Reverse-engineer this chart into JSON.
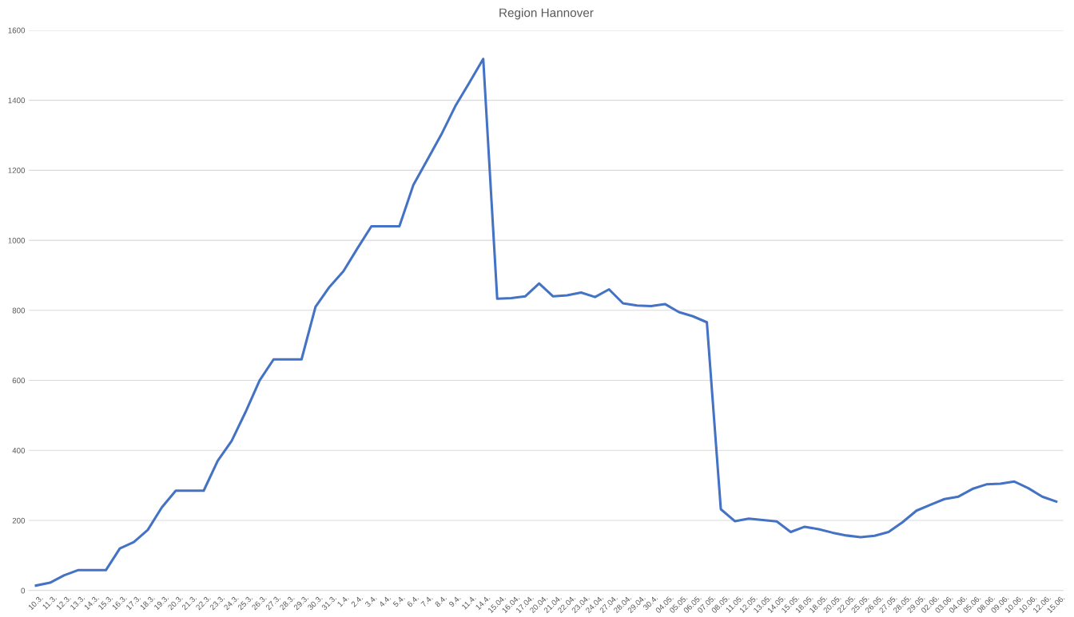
{
  "chart_data": {
    "type": "line",
    "title": "Region Hannover",
    "categories": [
      "10.3.",
      "11.3.",
      "12.3.",
      "13.3.",
      "14.3.",
      "15.3.",
      "16.3.",
      "17.3.",
      "18.3.",
      "19.3.",
      "20.3.",
      "21.3.",
      "22.3.",
      "23.3.",
      "24.3.",
      "25.3.",
      "26.3.",
      "27.3.",
      "28.3.",
      "29.3.",
      "30.3.",
      "31.3.",
      "1.4.",
      "2.4.",
      "3.4.",
      "4.4.",
      "5.4.",
      "6.4.",
      "7.4.",
      "8.4.",
      "9.4.",
      "11.4.",
      "14.4.",
      "15.04.",
      "16.04.",
      "17.04.",
      "20.04.",
      "21.04.",
      "22.04.",
      "23.04.",
      "24.04.",
      "27.04.",
      "28.04.",
      "29.04.",
      "30.4.",
      "04.05.",
      "05.05.",
      "06.05.",
      "07.05.",
      "08.05.",
      "11.05.",
      "12.05.",
      "13.05.",
      "14.05.",
      "15.05.",
      "18.05.",
      "18.05.",
      "20.05.",
      "22.05.",
      "25.05.",
      "26.05.",
      "27.05.",
      "28.05.",
      "29.05.",
      "02.06.",
      "03.06.",
      "04.06.",
      "05.06.",
      "08.06.",
      "09.06.",
      "10.06.",
      "10.06.",
      "12.06.",
      "15.06."
    ],
    "series": [
      {
        "color": "#4472c4",
        "values": [
          14,
          22,
          43,
          58,
          58,
          58,
          120,
          138,
          173,
          237,
          285,
          285,
          285,
          370,
          427,
          510,
          600,
          660,
          660,
          660,
          810,
          867,
          912,
          977,
          1040,
          1040,
          1040,
          1158,
          1230,
          1302,
          1383,
          1450,
          1518,
          833,
          835,
          840,
          877,
          840,
          843,
          851,
          838,
          860,
          820,
          814,
          812,
          818,
          795,
          783,
          766,
          232,
          198,
          205,
          201,
          197,
          167,
          182,
          175,
          165,
          157,
          152,
          156,
          167,
          195,
          228,
          245,
          261,
          268,
          290,
          303,
          305,
          311,
          292,
          268,
          254
        ]
      }
    ],
    "ylim": [
      0,
      1600
    ],
    "yticks": [
      0,
      200,
      400,
      600,
      800,
      1000,
      1200,
      1400,
      1600
    ],
    "grid": "y",
    "marker": "none",
    "line_style": "solid"
  }
}
